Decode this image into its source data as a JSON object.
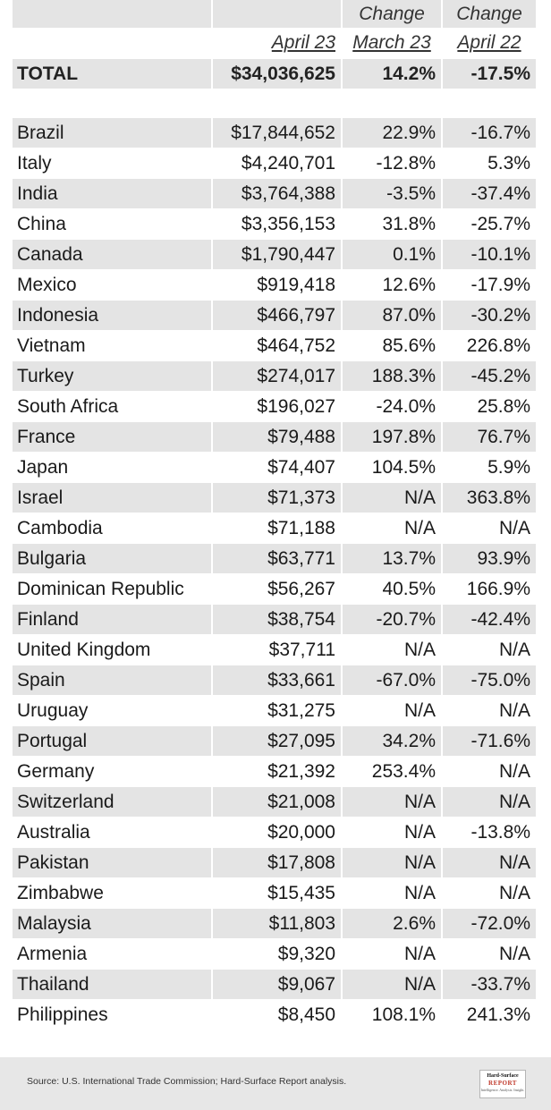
{
  "header": {
    "col3_top": "Change",
    "col4_top": "Change",
    "col2_sub": "April 23",
    "col3_sub": "March 23",
    "col4_sub": "April 22"
  },
  "total": {
    "label": "TOTAL",
    "value": "$34,036,625",
    "change_march": "14.2%",
    "change_april": "-17.5%"
  },
  "rows": [
    {
      "country": "Brazil",
      "value": "$17,844,652",
      "change_march": "22.9%",
      "change_april": "-16.7%"
    },
    {
      "country": "Italy",
      "value": "$4,240,701",
      "change_march": "-12.8%",
      "change_april": "5.3%"
    },
    {
      "country": "India",
      "value": "$3,764,388",
      "change_march": "-3.5%",
      "change_april": "-37.4%"
    },
    {
      "country": "China",
      "value": "$3,356,153",
      "change_march": "31.8%",
      "change_april": "-25.7%"
    },
    {
      "country": "Canada",
      "value": "$1,790,447",
      "change_march": "0.1%",
      "change_april": "-10.1%"
    },
    {
      "country": "Mexico",
      "value": "$919,418",
      "change_march": "12.6%",
      "change_april": "-17.9%"
    },
    {
      "country": "Indonesia",
      "value": "$466,797",
      "change_march": "87.0%",
      "change_april": "-30.2%"
    },
    {
      "country": "Vietnam",
      "value": "$464,752",
      "change_march": "85.6%",
      "change_april": "226.8%"
    },
    {
      "country": "Turkey",
      "value": "$274,017",
      "change_march": "188.3%",
      "change_april": "-45.2%"
    },
    {
      "country": "South Africa",
      "value": "$196,027",
      "change_march": "-24.0%",
      "change_april": "25.8%"
    },
    {
      "country": "France",
      "value": "$79,488",
      "change_march": "197.8%",
      "change_april": "76.7%"
    },
    {
      "country": "Japan",
      "value": "$74,407",
      "change_march": "104.5%",
      "change_april": "5.9%"
    },
    {
      "country": "Israel",
      "value": "$71,373",
      "change_march": "N/A",
      "change_april": "363.8%"
    },
    {
      "country": "Cambodia",
      "value": "$71,188",
      "change_march": "N/A",
      "change_april": "N/A"
    },
    {
      "country": "Bulgaria",
      "value": "$63,771",
      "change_march": "13.7%",
      "change_april": "93.9%"
    },
    {
      "country": "Dominican Republic",
      "value": "$56,267",
      "change_march": "40.5%",
      "change_april": "166.9%"
    },
    {
      "country": "Finland",
      "value": "$38,754",
      "change_march": "-20.7%",
      "change_april": "-42.4%"
    },
    {
      "country": "United Kingdom",
      "value": "$37,711",
      "change_march": "N/A",
      "change_april": "N/A"
    },
    {
      "country": "Spain",
      "value": "$33,661",
      "change_march": "-67.0%",
      "change_april": "-75.0%"
    },
    {
      "country": "Uruguay",
      "value": "$31,275",
      "change_march": "N/A",
      "change_april": "N/A"
    },
    {
      "country": "Portugal",
      "value": "$27,095",
      "change_march": "34.2%",
      "change_april": "-71.6%"
    },
    {
      "country": "Germany",
      "value": "$21,392",
      "change_march": "253.4%",
      "change_april": "N/A"
    },
    {
      "country": "Switzerland",
      "value": "$21,008",
      "change_march": "N/A",
      "change_april": "N/A"
    },
    {
      "country": "Australia",
      "value": "$20,000",
      "change_march": "N/A",
      "change_april": "-13.8%"
    },
    {
      "country": "Pakistan",
      "value": "$17,808",
      "change_march": "N/A",
      "change_april": "N/A"
    },
    {
      "country": "Zimbabwe",
      "value": "$15,435",
      "change_march": "N/A",
      "change_april": "N/A"
    },
    {
      "country": "Malaysia",
      "value": "$11,803",
      "change_march": "2.6%",
      "change_april": "-72.0%"
    },
    {
      "country": "Armenia",
      "value": "$9,320",
      "change_march": "N/A",
      "change_april": "N/A"
    },
    {
      "country": "Thailand",
      "value": "$9,067",
      "change_march": "N/A",
      "change_april": "-33.7%"
    },
    {
      "country": "Philippines",
      "value": "$8,450",
      "change_march": "108.1%",
      "change_april": "241.3%"
    }
  ],
  "footer": {
    "source": "Source: U.S. International Trade Commission; Hard-Surface Report analysis.",
    "logo_line1": "Hard-Surface",
    "logo_line2": "REPORT",
    "logo_line3": "Intelligence. Analysis. Insight."
  },
  "colors": {
    "stripe": "#e4e4e4",
    "footer_bg": "#e7e7e7",
    "logo_accent": "#c0392b"
  }
}
